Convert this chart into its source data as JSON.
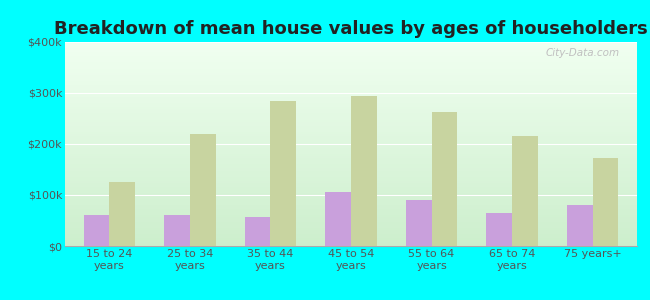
{
  "title": "Breakdown of mean house values by ages of householders",
  "categories": [
    "15 to 24\nyears",
    "25 to 34\nyears",
    "35 to 44\nyears",
    "45 to 54\nyears",
    "55 to 64\nyears",
    "65 to 74\nyears",
    "75 years+"
  ],
  "wilsonville_values": [
    60000,
    60000,
    57000,
    105000,
    90000,
    65000,
    80000
  ],
  "illinois_values": [
    125000,
    220000,
    285000,
    295000,
    262000,
    215000,
    172000
  ],
  "wilsonville_color": "#c9a0dc",
  "illinois_color": "#c8d4a0",
  "background_color": "#00ffff",
  "ylim": [
    0,
    400000
  ],
  "yticks": [
    0,
    100000,
    200000,
    300000,
    400000
  ],
  "ytick_labels": [
    "$0",
    "$100k",
    "$200k",
    "$300k",
    "$400k"
  ],
  "watermark": "City-Data.com",
  "bar_width": 0.32,
  "title_fontsize": 13,
  "tick_fontsize": 8,
  "legend_fontsize": 9
}
